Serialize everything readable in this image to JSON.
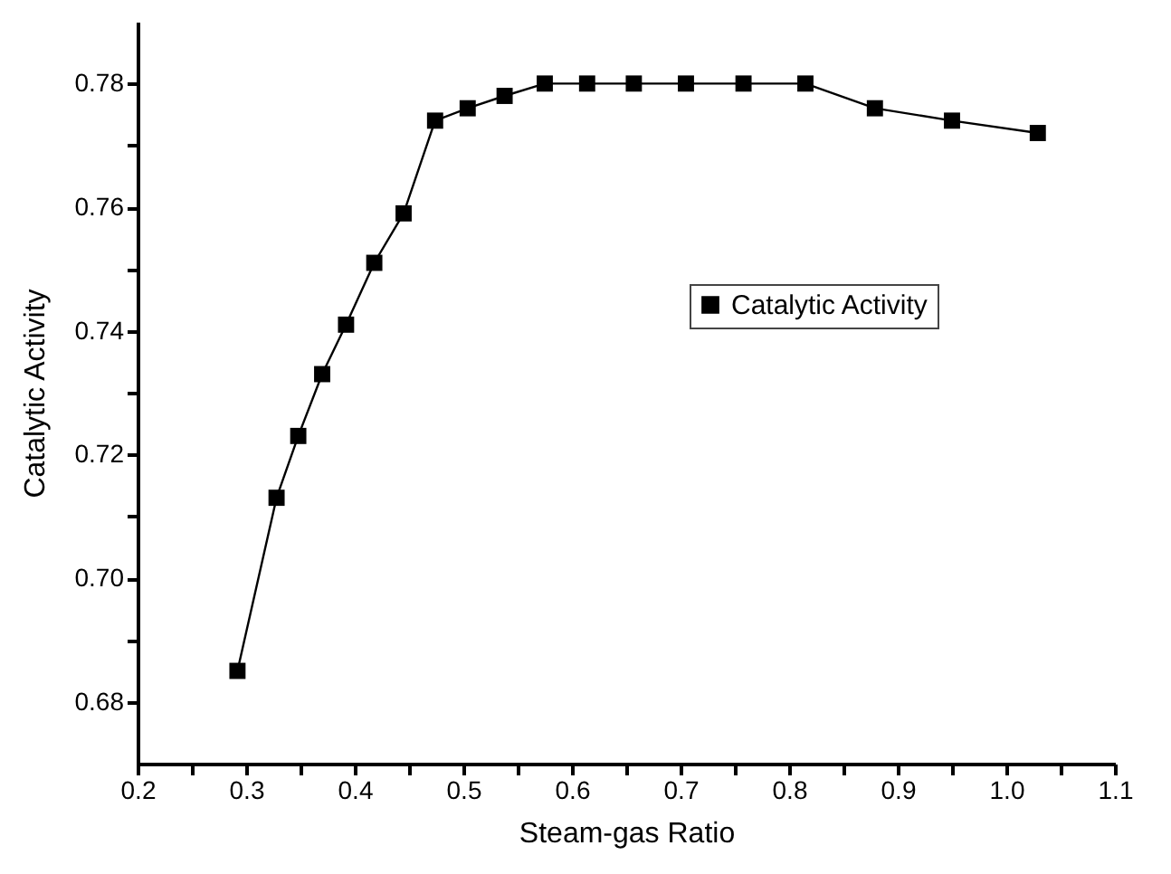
{
  "chart_data": {
    "type": "line",
    "xlabel": "Steam-gas Ratio",
    "ylabel": "Catalytic Activity",
    "x": [
      0.292,
      0.328,
      0.348,
      0.37,
      0.392,
      0.418,
      0.445,
      0.474,
      0.504,
      0.538,
      0.575,
      0.614,
      0.657,
      0.705,
      0.758,
      0.815,
      0.879,
      0.95,
      1.029
    ],
    "series": [
      {
        "name": "Catalytic Activity",
        "color": "#000000",
        "values": [
          0.685,
          0.713,
          0.723,
          0.733,
          0.741,
          0.751,
          0.759,
          0.774,
          0.776,
          0.778,
          0.78,
          0.78,
          0.78,
          0.78,
          0.78,
          0.78,
          0.776,
          0.774,
          0.772
        ]
      }
    ],
    "xlim": [
      0.2,
      1.1
    ],
    "xticks": [
      0.2,
      {
        "value": 0.25,
        "label": null
      },
      0.3,
      {
        "value": 0.35,
        "label": null
      },
      0.4,
      {
        "value": 0.45,
        "label": null
      },
      0.5,
      {
        "value": 0.55,
        "label": null
      },
      0.6,
      {
        "value": 0.65,
        "label": null
      },
      0.7,
      {
        "value": 0.75,
        "label": null
      },
      0.8,
      {
        "value": 0.85,
        "label": null
      },
      0.9,
      {
        "value": 0.95,
        "label": null
      },
      {
        "value": 1.0,
        "label": "1.0"
      },
      {
        "value": 1.05,
        "label": null
      },
      1.1
    ],
    "ylim": [
      0.67,
      0.79
    ],
    "yticks": [
      {
        "value": 0.68,
        "label": "0.68"
      },
      {
        "value": 0.69,
        "label": null
      },
      {
        "value": 0.7,
        "label": "0.70"
      },
      {
        "value": 0.71,
        "label": null
      },
      {
        "value": 0.72,
        "label": "0.72"
      },
      {
        "value": 0.73,
        "label": null
      },
      {
        "value": 0.74,
        "label": "0.74"
      },
      {
        "value": 0.75,
        "label": null
      },
      {
        "value": 0.76,
        "label": "0.76"
      },
      {
        "value": 0.77,
        "label": null
      },
      {
        "value": 0.78,
        "label": "0.78"
      }
    ],
    "grid": false,
    "legend": "right",
    "marker": "square",
    "line_style": "solid"
  }
}
